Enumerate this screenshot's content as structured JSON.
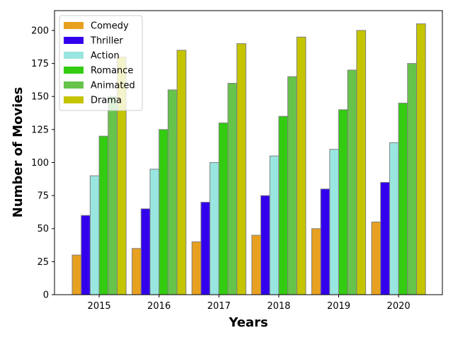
{
  "chart_data": {
    "type": "bar",
    "title": "",
    "xlabel": "Years",
    "ylabel": "Number of Movies",
    "categories": [
      "2015",
      "2016",
      "2017",
      "2018",
      "2019",
      "2020"
    ],
    "ylim": [
      0,
      215
    ],
    "yticks": [
      0,
      25,
      50,
      75,
      100,
      125,
      150,
      175,
      200
    ],
    "grid": false,
    "legend_position": "top-left",
    "series": [
      {
        "name": "Comedy",
        "color": "#e8a020",
        "values": [
          30,
          35,
          40,
          45,
          50,
          55
        ]
      },
      {
        "name": "Thriller",
        "color": "#3300ee",
        "values": [
          60,
          65,
          70,
          75,
          80,
          85
        ]
      },
      {
        "name": "Action",
        "color": "#99e6e0",
        "values": [
          90,
          95,
          100,
          105,
          110,
          115
        ]
      },
      {
        "name": "Romance",
        "color": "#33cc11",
        "values": [
          120,
          125,
          130,
          135,
          140,
          145
        ]
      },
      {
        "name": "Animated",
        "color": "#66c44a",
        "values": [
          150,
          155,
          160,
          165,
          170,
          175
        ]
      },
      {
        "name": "Drama",
        "color": "#c4c400",
        "values": [
          180,
          185,
          190,
          195,
          200,
          205
        ]
      }
    ]
  }
}
